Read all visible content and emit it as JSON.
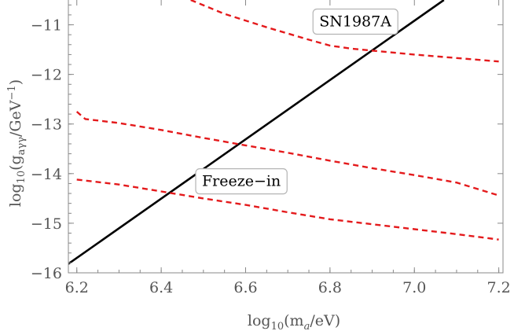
{
  "chart_data": {
    "type": "line",
    "title": "",
    "xlabel": {
      "main": "log",
      "sub": "10",
      "rest": "(m",
      "sub2": "a",
      "tail": "/eV)"
    },
    "ylabel": {
      "main": "log",
      "sub": "10",
      "rest": "(g",
      "sub2": "aγγ",
      "tail": "/GeV",
      "sup": "−1",
      "end": ")"
    },
    "xlim": [
      6.18,
      7.21
    ],
    "ylim": [
      -16.0,
      -10.5
    ],
    "xticks": [
      6.2,
      6.4,
      6.6,
      6.8,
      7.0,
      7.2
    ],
    "xtick_labels": [
      "6.2",
      "6.4",
      "6.6",
      "6.8",
      "7.0",
      "7.2"
    ],
    "yticks": [
      -16,
      -15,
      -14,
      -13,
      -12,
      -11
    ],
    "ytick_labels": [
      "−16",
      "−15",
      "−14",
      "−13",
      "−12",
      "−11"
    ],
    "grid": false,
    "series": [
      {
        "style": "solid",
        "color": "#000000",
        "x": [
          6.18,
          7.07
        ],
        "y": [
          -15.82,
          -10.5
        ]
      },
      {
        "style": "dashed",
        "color": "#e41a1c",
        "x": [
          6.47,
          6.55,
          6.65,
          6.75,
          6.8,
          6.85,
          6.9,
          7.0,
          7.1,
          7.2
        ],
        "y": [
          -10.5,
          -10.78,
          -11.05,
          -11.3,
          -11.42,
          -11.48,
          -11.52,
          -11.6,
          -11.67,
          -11.74
        ]
      },
      {
        "style": "dashed",
        "color": "#e41a1c",
        "x": [
          6.2,
          6.22,
          6.3,
          6.4,
          6.5,
          6.6,
          6.7,
          6.8,
          6.9,
          7.0,
          7.1,
          7.2
        ],
        "y": [
          -12.75,
          -12.9,
          -12.98,
          -13.12,
          -13.28,
          -13.43,
          -13.58,
          -13.74,
          -13.89,
          -14.03,
          -14.18,
          -14.44
        ]
      },
      {
        "style": "dashed",
        "color": "#e41a1c",
        "x": [
          6.2,
          6.3,
          6.4,
          6.5,
          6.6,
          6.7,
          6.8,
          6.9,
          7.0,
          7.1,
          7.2
        ],
        "y": [
          -14.12,
          -14.22,
          -14.36,
          -14.5,
          -14.63,
          -14.78,
          -14.92,
          -15.02,
          -15.12,
          -15.22,
          -15.33
        ]
      }
    ],
    "annotations": [
      {
        "text": "SN1987A",
        "x": 6.86,
        "y": -10.92
      },
      {
        "text": "Freeze−in",
        "x": 6.59,
        "y": -14.14
      }
    ]
  }
}
